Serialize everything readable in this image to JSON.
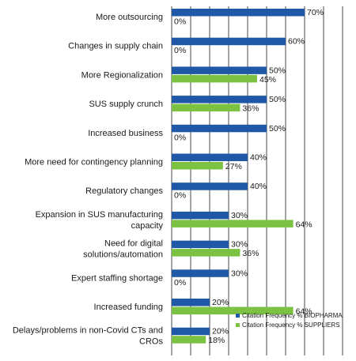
{
  "chart_data": {
    "type": "bar",
    "orientation": "horizontal",
    "categories": [
      "More outsourcing",
      "Changes in supply chain",
      "More Regionalization",
      "SUS supply crunch",
      "Increased business",
      "More need for contingency planning",
      "Regulatory changes",
      "Expansion in SUS manufacturing capacity",
      "Need for digital solutions/automation",
      "Expert staffing shortage",
      "Increased funding",
      "Delays/problems in non-Covid CTs and CROs"
    ],
    "series": [
      {
        "name": "Citation Frequency % BIOPHARMA",
        "color": "#2058a8",
        "values": [
          70,
          60,
          50,
          50,
          50,
          40,
          40,
          30,
          30,
          30,
          20,
          20
        ]
      },
      {
        "name": "Citation Frequency % SUPPLIERS",
        "color": "#7cc242",
        "values": [
          0,
          0,
          45,
          36,
          0,
          27,
          0,
          64,
          36,
          0,
          64,
          18
        ]
      }
    ],
    "value_suffix": "%",
    "xlim": [
      0,
      90
    ],
    "grid": true,
    "legend_position": "bottom-right"
  }
}
